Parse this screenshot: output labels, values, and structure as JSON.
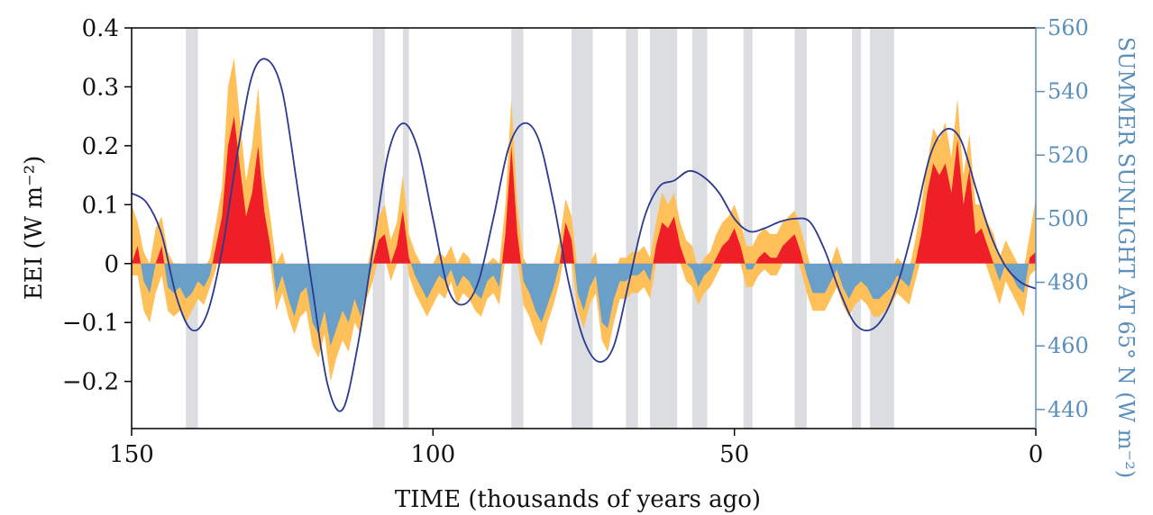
{
  "chart_data": {
    "type": "area",
    "title": "",
    "xlabel": "TIME (thousands of years ago)",
    "ylabel": "EEI (W m⁻²)",
    "y2label": "SUMMER SUNLIGHT AT 65° N (W m⁻²)",
    "xlim": [
      150,
      0
    ],
    "ylim": [
      -0.28,
      0.4
    ],
    "y2lim": [
      434,
      560
    ],
    "xticks": [
      150,
      100,
      50,
      0
    ],
    "xtick_labels": [
      "150",
      "100",
      "50",
      "0"
    ],
    "yticks": [
      0.4,
      0.3,
      0.2,
      0.1,
      0,
      -0.1,
      -0.2
    ],
    "ytick_labels": [
      "0.4",
      "0.3",
      "0.2",
      "0.1",
      "0",
      "−0.1",
      "−0.2"
    ],
    "y2ticks": [
      560,
      540,
      520,
      500,
      480,
      460,
      440
    ],
    "y2tick_labels": [
      "560",
      "540",
      "520",
      "500",
      "480",
      "460",
      "440"
    ],
    "colors": {
      "positive": "#ee1f26",
      "negative": "#6aa0c8",
      "uncertainty": "#ffc05a",
      "insolation": "#2b3990",
      "shading": "#dcdde0",
      "right_axis": "#5b8fbd"
    },
    "gray_bands": [
      [
        141,
        139
      ],
      [
        110,
        108
      ],
      [
        105,
        104
      ],
      [
        87,
        85
      ],
      [
        77,
        73.5
      ],
      [
        68,
        66
      ],
      [
        64,
        59.5
      ],
      [
        57,
        54.5
      ],
      [
        48.5,
        47
      ],
      [
        40,
        38
      ],
      [
        30.5,
        29
      ],
      [
        27.5,
        23.5
      ]
    ],
    "series": [
      {
        "axis": "left",
        "x": [
          150,
          149,
          148,
          147,
          146,
          145,
          144,
          143,
          142,
          141,
          140,
          139,
          138,
          137,
          136,
          135,
          134,
          133,
          132,
          131,
          130,
          129,
          128,
          127,
          126,
          125,
          124,
          123,
          122,
          121,
          120,
          119,
          118,
          117,
          116,
          115,
          114,
          113,
          112,
          111,
          110,
          109,
          108,
          107,
          106,
          105,
          104,
          103,
          102,
          101,
          100,
          99,
          98,
          97,
          96,
          95,
          94,
          93,
          92,
          91,
          90,
          89,
          88,
          87,
          86,
          85,
          84,
          83,
          82,
          81,
          80,
          79,
          78,
          77,
          76,
          75,
          74,
          73,
          72,
          71,
          70,
          69,
          68,
          67,
          66,
          65,
          64,
          63,
          62,
          61,
          60,
          59,
          58,
          57,
          56,
          55,
          54,
          53,
          52,
          51,
          50,
          49,
          48,
          47,
          46,
          45,
          44,
          43,
          42,
          41,
          40,
          39,
          38,
          37,
          36,
          35,
          34,
          33,
          32,
          31,
          30,
          29,
          28,
          27,
          26,
          25,
          24,
          23,
          22,
          21,
          20,
          19,
          18,
          17,
          16,
          15,
          14,
          13,
          12,
          11,
          10,
          9,
          8,
          7,
          6,
          5,
          4,
          3,
          2,
          1,
          0
        ],
        "y": [
          0.0,
          0.03,
          -0.03,
          -0.05,
          0.0,
          0.03,
          -0.04,
          -0.05,
          -0.04,
          -0.06,
          -0.05,
          -0.03,
          -0.04,
          -0.02,
          0.03,
          0.08,
          0.2,
          0.25,
          0.16,
          0.08,
          0.12,
          0.2,
          0.09,
          0.03,
          -0.05,
          -0.02,
          -0.06,
          -0.09,
          -0.05,
          -0.04,
          -0.1,
          -0.12,
          -0.08,
          -0.14,
          -0.11,
          -0.08,
          -0.1,
          -0.06,
          -0.09,
          -0.04,
          0.0,
          0.04,
          0.05,
          0.0,
          0.03,
          0.09,
          0.01,
          -0.02,
          -0.04,
          -0.06,
          -0.04,
          -0.02,
          -0.03,
          -0.01,
          -0.04,
          -0.02,
          -0.03,
          -0.05,
          -0.06,
          -0.03,
          -0.02,
          -0.04,
          0.05,
          0.2,
          0.05,
          -0.03,
          -0.05,
          -0.08,
          -0.1,
          -0.07,
          -0.04,
          0.0,
          0.07,
          0.04,
          -0.05,
          -0.08,
          -0.04,
          -0.02,
          -0.1,
          -0.11,
          -0.06,
          -0.03,
          -0.03,
          -0.02,
          -0.02,
          -0.01,
          -0.03,
          0.03,
          0.07,
          0.06,
          0.08,
          0.03,
          0.0,
          -0.01,
          -0.04,
          -0.02,
          -0.01,
          0.01,
          0.03,
          0.04,
          0.06,
          0.03,
          -0.01,
          -0.01,
          0.01,
          0.02,
          0.01,
          0.01,
          0.03,
          0.04,
          0.05,
          0.02,
          -0.02,
          -0.05,
          -0.05,
          -0.05,
          -0.03,
          -0.01,
          -0.04,
          -0.06,
          -0.04,
          -0.03,
          -0.04,
          -0.06,
          -0.06,
          -0.05,
          -0.04,
          -0.02,
          -0.03,
          -0.04,
          0.0,
          0.05,
          0.12,
          0.17,
          0.15,
          0.17,
          0.12,
          0.21,
          0.1,
          0.16,
          0.05,
          0.06,
          0.03,
          0.0,
          -0.03,
          0.0,
          -0.02,
          -0.04,
          -0.05,
          0.01,
          0.02
        ],
        "lower": [
          -0.02,
          -0.02,
          -0.08,
          -0.1,
          -0.05,
          -0.02,
          -0.08,
          -0.09,
          -0.08,
          -0.1,
          -0.08,
          -0.06,
          -0.07,
          -0.04,
          -0.01,
          0.04,
          0.12,
          0.16,
          0.09,
          0.04,
          0.06,
          0.12,
          0.05,
          0.0,
          -0.08,
          -0.05,
          -0.09,
          -0.12,
          -0.09,
          -0.08,
          -0.14,
          -0.16,
          -0.12,
          -0.2,
          -0.16,
          -0.13,
          -0.15,
          -0.1,
          -0.12,
          -0.06,
          -0.03,
          0.01,
          0.01,
          -0.03,
          0.0,
          0.05,
          -0.02,
          -0.05,
          -0.07,
          -0.09,
          -0.07,
          -0.05,
          -0.06,
          -0.03,
          -0.07,
          -0.05,
          -0.06,
          -0.08,
          -0.09,
          -0.06,
          -0.05,
          -0.07,
          0.01,
          0.13,
          0.01,
          -0.07,
          -0.09,
          -0.12,
          -0.14,
          -0.1,
          -0.07,
          -0.03,
          0.03,
          0.0,
          -0.08,
          -0.11,
          -0.07,
          -0.05,
          -0.13,
          -0.15,
          -0.1,
          -0.06,
          -0.06,
          -0.05,
          -0.05,
          -0.04,
          -0.06,
          0.0,
          0.03,
          0.02,
          0.04,
          0.0,
          -0.03,
          -0.04,
          -0.07,
          -0.05,
          -0.04,
          -0.02,
          0.0,
          0.01,
          0.02,
          0.0,
          -0.04,
          -0.04,
          -0.02,
          -0.01,
          -0.02,
          -0.02,
          0.0,
          0.01,
          0.02,
          -0.01,
          -0.05,
          -0.08,
          -0.08,
          -0.08,
          -0.06,
          -0.04,
          -0.07,
          -0.09,
          -0.07,
          -0.06,
          -0.07,
          -0.09,
          -0.09,
          -0.08,
          -0.07,
          -0.05,
          -0.06,
          -0.07,
          -0.03,
          0.01,
          0.08,
          0.12,
          0.1,
          0.12,
          0.07,
          0.15,
          0.06,
          0.11,
          0.01,
          0.02,
          -0.01,
          -0.04,
          -0.07,
          -0.03,
          -0.05,
          -0.07,
          -0.09,
          -0.02,
          -0.01
        ],
        "upper": [
          0.1,
          0.07,
          0.02,
          0.0,
          0.06,
          0.08,
          0.02,
          0.0,
          0.0,
          -0.02,
          -0.02,
          0.0,
          -0.01,
          0.01,
          0.07,
          0.13,
          0.3,
          0.35,
          0.24,
          0.14,
          0.2,
          0.3,
          0.15,
          0.08,
          0.0,
          0.02,
          -0.02,
          -0.05,
          -0.02,
          -0.01,
          -0.06,
          -0.08,
          -0.04,
          -0.08,
          -0.06,
          -0.03,
          -0.05,
          -0.02,
          -0.05,
          -0.01,
          0.04,
          0.08,
          0.1,
          0.04,
          0.07,
          0.15,
          0.05,
          0.02,
          0.0,
          -0.02,
          0.0,
          0.02,
          0.01,
          0.03,
          0.0,
          0.02,
          0.01,
          -0.02,
          -0.03,
          0.0,
          0.01,
          0.0,
          0.1,
          0.28,
          0.1,
          0.01,
          -0.01,
          -0.04,
          -0.06,
          -0.03,
          0.0,
          0.04,
          0.11,
          0.08,
          -0.01,
          -0.04,
          0.0,
          0.02,
          -0.06,
          -0.07,
          -0.02,
          0.01,
          0.01,
          0.02,
          0.02,
          0.03,
          0.01,
          0.07,
          0.12,
          0.1,
          0.12,
          0.07,
          0.04,
          0.03,
          -0.01,
          0.01,
          0.02,
          0.05,
          0.07,
          0.08,
          0.1,
          0.07,
          0.03,
          0.03,
          0.05,
          0.06,
          0.05,
          0.05,
          0.07,
          0.08,
          0.09,
          0.06,
          0.02,
          -0.02,
          -0.02,
          -0.02,
          0.0,
          0.03,
          0.0,
          -0.03,
          -0.01,
          0.0,
          -0.01,
          -0.03,
          -0.03,
          -0.02,
          -0.01,
          0.01,
          0.0,
          -0.01,
          0.04,
          0.1,
          0.17,
          0.23,
          0.21,
          0.24,
          0.18,
          0.28,
          0.15,
          0.22,
          0.1,
          0.1,
          0.07,
          0.05,
          0.01,
          0.04,
          0.02,
          0.0,
          -0.01,
          0.05,
          0.11
        ]
      },
      {
        "axis": "right",
        "x": [
          150,
          147.5,
          145,
          142.5,
          140,
          137.5,
          135,
          132.5,
          130,
          127.5,
          125,
          122.5,
          120,
          117.5,
          115,
          112.5,
          110,
          107.5,
          105,
          102.5,
          100,
          97.5,
          95,
          92.5,
          90,
          87.5,
          85,
          82.5,
          80,
          77.5,
          75,
          72.5,
          70,
          67.5,
          65,
          62.5,
          60,
          57.5,
          55,
          52.5,
          50,
          47.5,
          45,
          42.5,
          40,
          37.5,
          35,
          32.5,
          30,
          27.5,
          25,
          22.5,
          20,
          17.5,
          15,
          12.5,
          10,
          7.5,
          5,
          2.5,
          0
        ],
        "y": [
          508,
          505,
          495,
          475,
          465,
          470,
          490,
          520,
          545,
          550,
          540,
          510,
          478,
          448,
          440,
          460,
          490,
          520,
          530,
          522,
          500,
          478,
          473,
          480,
          500,
          522,
          530,
          525,
          505,
          480,
          462,
          455,
          460,
          480,
          500,
          510,
          512,
          515,
          513,
          508,
          500,
          496,
          497,
          499,
          500,
          499,
          490,
          477,
          467,
          465,
          470,
          482,
          500,
          520,
          528,
          525,
          510,
          495,
          485,
          480,
          478
        ]
      }
    ]
  }
}
